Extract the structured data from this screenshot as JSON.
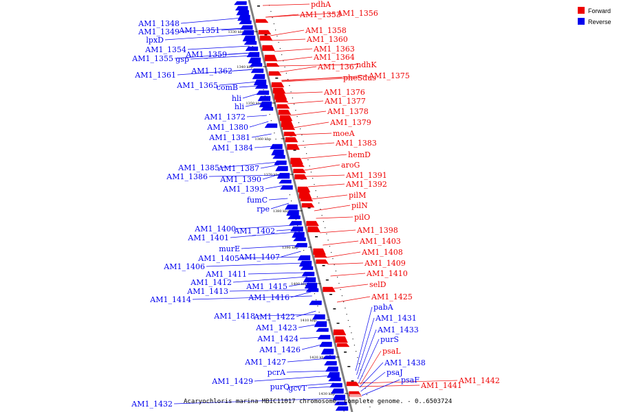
{
  "caption": "Acaryochloris marina MBIC11017 chromosome, complete genome. - 0..6503724",
  "legend": [
    {
      "label": "Forward",
      "color": "#ee0000"
    },
    {
      "label": "Reverse",
      "color": "#0000ee"
    }
  ],
  "colors": {
    "forward": "#ee0000",
    "forward_light": "#f5a0a0",
    "reverse": "#0000ee",
    "backbone": "#808080",
    "ticks": "#000000"
  },
  "scale_ticks": [
    "1330 kbp",
    "1340 kbp",
    "1350 kbp",
    "1360 kbp",
    "1370 kbp",
    "1380 kbp",
    "1390 kbp",
    "1400 kbp",
    "1410 kbp",
    "1420 kbp",
    "1430 kbp"
  ],
  "reverse_labels": [
    "AM1_1348",
    "AM1_1349",
    "AM1_1351",
    "lpxD",
    "AM1_1354",
    "AM1_1359",
    "AM1_1355",
    "gsp",
    "AM1_1362",
    "AM1_1361",
    "AM1_1365",
    "comB",
    "hli",
    "hli",
    "AM1_1372",
    "AM1_1380",
    "AM1_1381",
    "AM1_1384",
    "AM1_1385",
    "AM1_1387",
    "AM1_1386",
    "AM1_1390",
    "AM1_1393",
    "fumC",
    "rpe",
    "AM1_1400",
    "AM1_1402",
    "AM1_1401",
    "murE",
    "AM1_1405",
    "AM1_1407",
    "AM1_1406",
    "AM1_1411",
    "AM1_1412",
    "AM1_1415",
    "AM1_1413",
    "AM1_1416",
    "AM1_1414",
    "AM1_1418",
    "AM1_1422",
    "AM1_1423",
    "AM1_1424",
    "AM1_1426",
    "AM1_1427",
    "pcrA",
    "AM1_1429",
    "purQ",
    "gcvT",
    "AM1_1432"
  ],
  "forward_labels": [
    "pdhA",
    "AM1_1353",
    "AM1_1356",
    "AM1_1358",
    "AM1_1360",
    "AM1_1363",
    "AM1_1364",
    "AM1_1367",
    "ndhK",
    "pheS",
    "dus",
    "AM1_1375",
    "AM1_1376",
    "AM1_1377",
    "AM1_1378",
    "AM1_1379",
    "moeA",
    "AM1_1383",
    "hemD",
    "aroG",
    "AM1_1391",
    "AM1_1392",
    "pilM",
    "pilN",
    "pilO",
    "AM1_1398",
    "AM1_1403",
    "AM1_1408",
    "AM1_1409",
    "AM1_1410",
    "selD",
    "AM1_1425",
    "AM1_1441",
    "AM1_1442"
  ],
  "right_reverse_labels": [
    "pabA",
    "AM1_1431",
    "AM1_1433",
    "purS",
    "AM1_1438",
    "psaJ",
    "psaF"
  ],
  "right_forward_labels": [
    "psaL"
  ]
}
